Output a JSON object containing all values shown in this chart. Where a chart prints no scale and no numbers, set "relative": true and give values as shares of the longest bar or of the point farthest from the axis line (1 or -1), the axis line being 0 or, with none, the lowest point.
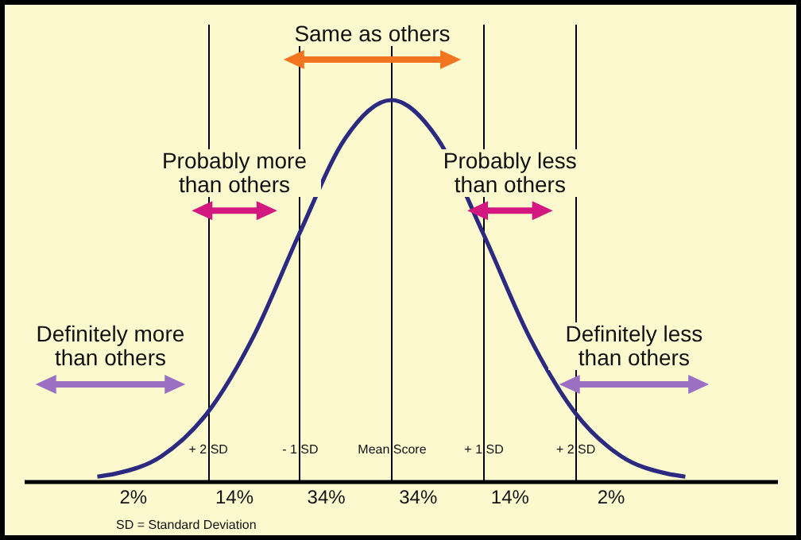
{
  "chart_data": {
    "type": "line",
    "relative": true,
    "x": [
      -3.2,
      -3,
      -2.5,
      -2,
      -1.5,
      -1,
      -0.5,
      0,
      0.5,
      1,
      1.5,
      2,
      2.5,
      3,
      3.2
    ],
    "series": [
      {
        "color": "#2b2a80",
        "values": [
          0.012,
          0.02,
          0.066,
          0.18,
          0.38,
          0.65,
          0.9,
          1,
          0.9,
          0.65,
          0.38,
          0.18,
          0.066,
          0.02,
          0.012
        ]
      }
    ],
    "xlim": [
      -4,
      4.2
    ],
    "xticks": [
      {
        "value": -2,
        "label": "+ 2 SD"
      },
      {
        "value": -1,
        "label": "- 1 SD"
      },
      {
        "value": 0,
        "label": "Mean Score"
      },
      {
        "value": 1,
        "label": "+ 1 SD"
      },
      {
        "value": 2,
        "label": "+ 2 SD"
      }
    ],
    "grid": "x",
    "annotations": [
      "Same as others",
      "Probably more than others",
      "Probably less than others",
      "Definitely more than others",
      "Definitely less than others",
      "2%",
      "14%",
      "34%",
      "34%",
      "14%",
      "2%",
      "SD = Standard Deviation"
    ]
  }
}
